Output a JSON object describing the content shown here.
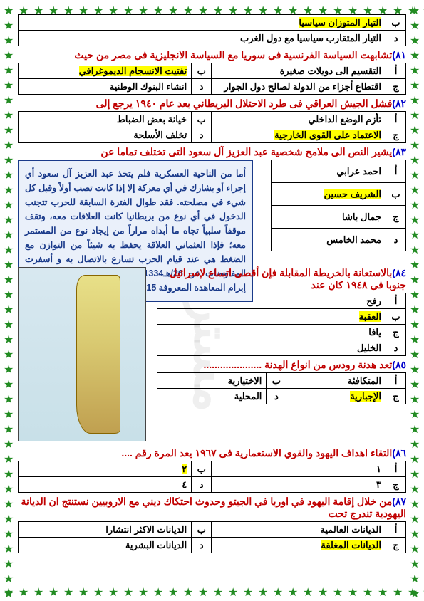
{
  "top_rows": {
    "r1": {
      "letter": "ب",
      "text": "التيار المتوزان سياسيا"
    },
    "r2": {
      "letter": "د",
      "text": "التيار المتقارب سياسيا مع دول الغرب"
    }
  },
  "q81": {
    "num": "٨١)",
    "text": "تشابهت السياسة الفرنسية فى سوريا مع السياسة الانجليزية فى مصر من حيث",
    "a": "التقسيم الى دويلات صغيرة",
    "b": "تفتيت الانسجام الديموغرافي",
    "c": "اقتطاع أجزاء من الدولة لصالح دول الجوار",
    "d": "انشاء البنوك الوطنية"
  },
  "q82": {
    "num": "٨٢)",
    "text": "فشل الجيش العراقي فى طرد الاحتلال البريطاني بعد عام ١٩٤٠ يرجع إلى",
    "a": "تأزم الوضع الداخلي",
    "b": "خيانة بعض الضباط",
    "c": "الاعتماد على القوى الخارجية",
    "d": "تخلف الأسلحة"
  },
  "q83": {
    "num": "٨٣)",
    "text": "يشير النص الى ملامح شخصية عبد العزيز آل سعود التى تختلف تماما عن",
    "names": {
      "a": "احمد عرابي",
      "b": "الشريف حسين",
      "c": "جمال باشا",
      "d": "محمد الخامس"
    },
    "passage": "أما من الناحية العسكرية فلم يتخذ عبد العزيز آل سعود أي إجراء أو يشارك في أي معركة إلا إذا كانت تصب أولاً وقبل كل شيء في مصلحته. فقد طوال الفترة السابقة للحرب تتجنب الدخول في أي نوع من بريطانيا كانت العلاقات معه، وتقف موقفاً سلبياً تجاه ما أبداه مراراً من إيجاد نوع من المستمر معه؛ فإذا العثماني العلاقة يحفظ به شيئاً من التوازن مع الضغط هي عند قيام الحرب تسارع بالاتصال به و أسفرت المفاوضات عن 26/هـ1334 صفر 18 بتاريخ معاهدة دارين إبرام المعاهدة المعروفة 1915 ديسمبر"
  },
  "q84": {
    "num": "٨٤)",
    "text": "بالاستعانة بالخريطة المقابلة فإن أقصى اتساع لإسرائيل جنوبا فى ١٩٤٨ كان عند",
    "a": "رفح",
    "b": "العقبة",
    "c": "يافا",
    "d": "الخليل"
  },
  "q85": {
    "num": "٨٥)",
    "text": "تعد هدنة رودس من انواع الهدنة .....................",
    "a": "المتكافئة",
    "b": "الاختيارية",
    "c": "الإجبارية",
    "d": "المحلية"
  },
  "q86": {
    "num": "٨٦)",
    "text": "التقاء اهداف اليهود والقوي الاستعمارية فى ١٩٦٧ يعد المرة رقم ....",
    "a": "١",
    "b": "٢",
    "c": "٣",
    "d": "٤"
  },
  "q87": {
    "num": "٨٧)",
    "text": "من خلال إقامة اليهود في اوربا في الجيتو وحدوث احتكاك ديني مع الاروبيين نستنتج ان الديانة اليهودية تندرج تحت",
    "a": "الديانات العالمية",
    "b": "الديانات الاكثر انتشارا",
    "c": "الديانات المغلقة",
    "d": "الديانات البشرية"
  }
}
